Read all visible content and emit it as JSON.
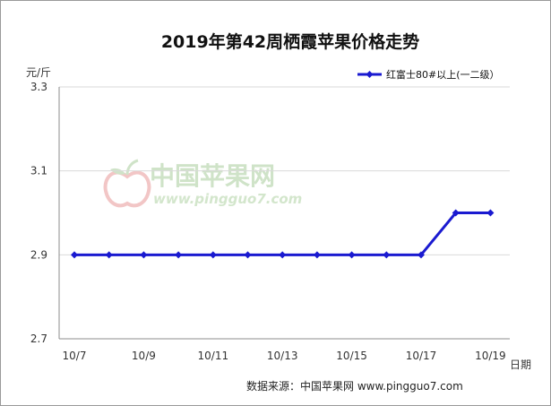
{
  "chart_data": {
    "type": "line",
    "title": "2019年第42周栖霞苹果价格走势",
    "ylabel": "元/斤",
    "xlabel": "日期",
    "categories": [
      "10/7",
      "10/8",
      "10/9",
      "10/10",
      "10/11",
      "10/12",
      "10/13",
      "10/14",
      "10/15",
      "10/16",
      "10/17",
      "10/18",
      "10/19"
    ],
    "x_tick_labels": [
      "10/7",
      "10/9",
      "10/11",
      "10/13",
      "10/15",
      "10/17",
      "10/19"
    ],
    "ylim": [
      2.7,
      3.3
    ],
    "y_ticks": [
      2.7,
      2.9,
      3.1,
      3.3
    ],
    "grid": true,
    "legend_position": "top-right",
    "series": [
      {
        "name": "红富士80#以上(一二级）",
        "color": "#1a1ad0",
        "values": [
          2.9,
          2.9,
          2.9,
          2.9,
          2.9,
          2.9,
          2.9,
          2.9,
          2.9,
          2.9,
          2.9,
          3.0,
          3.0
        ]
      }
    ]
  },
  "watermark": {
    "text": "中国苹果网",
    "url": "www.pingguo7.com"
  },
  "source": "数据来源：中国苹果网 www.pingguo7.com"
}
